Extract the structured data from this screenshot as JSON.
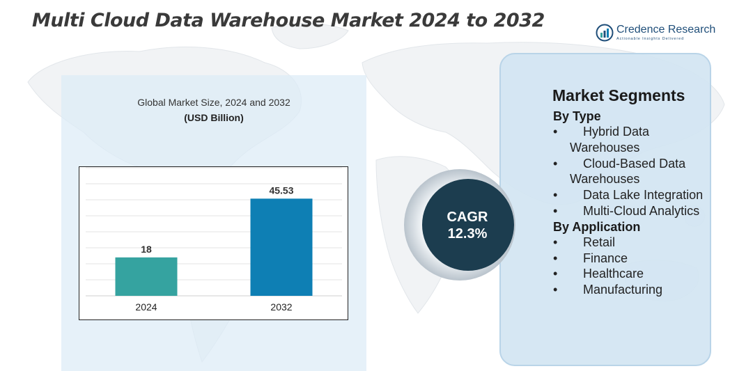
{
  "header": {
    "title": "Multi Cloud Data Warehouse Market 2024 to 2032"
  },
  "brand": {
    "name": "Credence Research",
    "tagline": "Actionable Insights Delivered"
  },
  "chart": {
    "subtitle": "Global Market Size, 2024 and 2032",
    "unit": "(USD Billion)"
  },
  "chart_data": {
    "type": "bar",
    "title": "Global Market Size, 2024 and 2032",
    "ylabel": "(USD Billion)",
    "categories": [
      "2024",
      "2032"
    ],
    "values": [
      18,
      45.53
    ],
    "data_labels": [
      "18",
      "45.53"
    ],
    "colors": [
      "#35a3a0",
      "#0e7fb4"
    ],
    "ylim": [
      0,
      60
    ],
    "grid": true
  },
  "cagr": {
    "label": "CAGR",
    "value": "12.3%"
  },
  "segments": {
    "title": "Market Segments",
    "groups": [
      {
        "title": "By Type",
        "items": [
          "Hybrid Data Warehouses",
          "Cloud-Based Data Warehouses",
          "Data Lake Integration",
          "Multi-Cloud Analytics"
        ]
      },
      {
        "title": "By Application",
        "items": [
          "Retail",
          "Finance",
          "Healthcare",
          "Manufacturing"
        ]
      }
    ]
  },
  "colors": {
    "title": "#3a3a3a",
    "panel": "#dcebf6",
    "cagr_disc": "#1c3d4f",
    "brand": "#1f4e79"
  }
}
